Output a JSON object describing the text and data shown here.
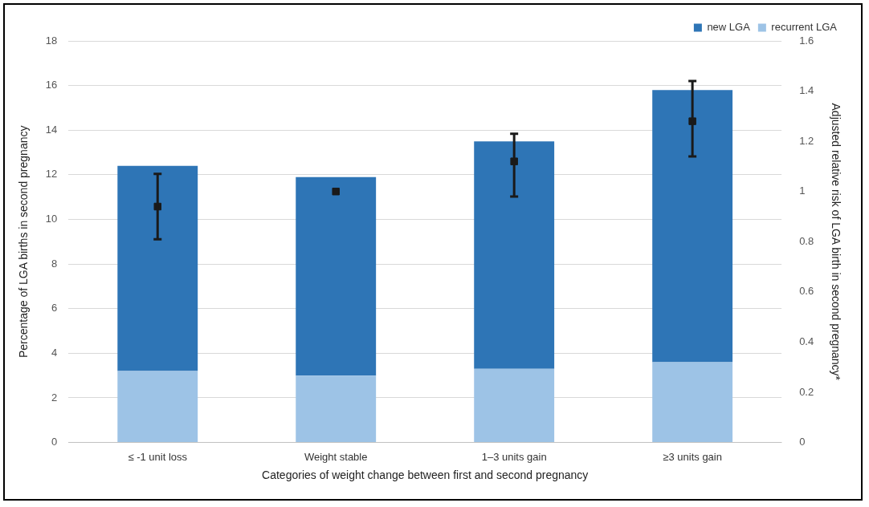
{
  "chart_data": {
    "type": "bar",
    "stacked": true,
    "xlabel": "Categories of weight change between first and second pregnancy",
    "ylabel": "Percentage of LGA births in second pregnancy",
    "y2label": "Adjusted relative risk of LGA birth in second pregnancy*",
    "categories": [
      "≤ -1 unit loss",
      "Weight stable",
      "1–3 units gain",
      "≥3 units gain"
    ],
    "series": [
      {
        "name": "recurrent LGA",
        "color": "#9dc3e6",
        "values": [
          3.2,
          3.0,
          3.3,
          3.6
        ]
      },
      {
        "name": "new LGA",
        "color": "#2e75b6",
        "values": [
          9.2,
          8.9,
          10.2,
          12.2
        ]
      },
      {
        "type": "scatter",
        "axis": "y2",
        "color": "#1a1a1a",
        "marker": "square",
        "values": [
          0.94,
          1.0,
          1.12,
          1.28
        ],
        "errors": [
          [
            0.81,
            1.07
          ],
          null,
          [
            0.98,
            1.23
          ],
          [
            1.14,
            1.44
          ]
        ]
      }
    ],
    "ylim": [
      0,
      18
    ],
    "yticks": [
      0,
      2,
      4,
      6,
      8,
      10,
      12,
      14,
      16,
      18
    ],
    "y2lim": [
      0,
      1.6
    ],
    "y2ticks": [
      0,
      0.2,
      0.4,
      0.6,
      0.8,
      1,
      1.2,
      1.4,
      1.6
    ],
    "grid": "y",
    "legend": "top right"
  }
}
